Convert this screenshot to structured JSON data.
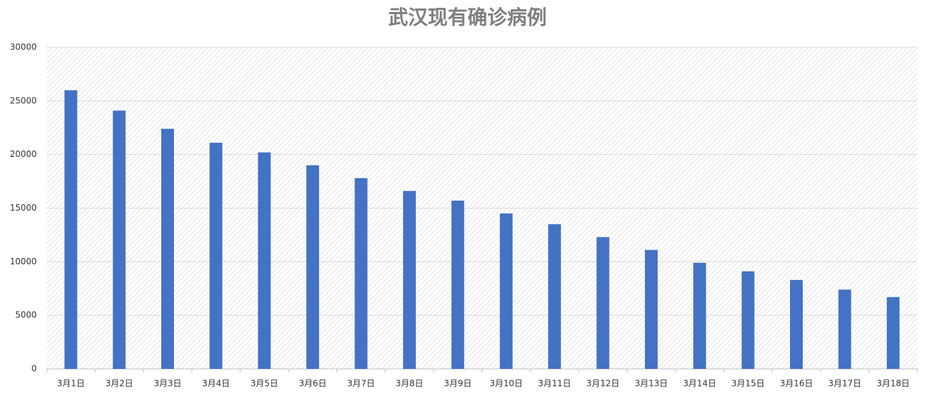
{
  "chart_data": {
    "type": "bar",
    "title": "武汉现有确诊病例",
    "categories": [
      "3月1日",
      "3月2日",
      "3月3日",
      "3月4日",
      "3月5日",
      "3月6日",
      "3月7日",
      "3月8日",
      "3月9日",
      "3月10日",
      "3月11日",
      "3月12日",
      "3月13日",
      "3月14日",
      "3月15日",
      "3月16日",
      "3月17日",
      "3月18日"
    ],
    "values": [
      26000,
      24100,
      22400,
      21100,
      20200,
      19000,
      17800,
      16600,
      15700,
      14500,
      13500,
      12300,
      11100,
      9900,
      9100,
      8300,
      7400,
      6700
    ],
    "color": "#4472c4",
    "ylim": [
      0,
      30000
    ],
    "yticks": [
      0,
      5000,
      10000,
      15000,
      20000,
      25000,
      30000
    ],
    "grid": true
  }
}
